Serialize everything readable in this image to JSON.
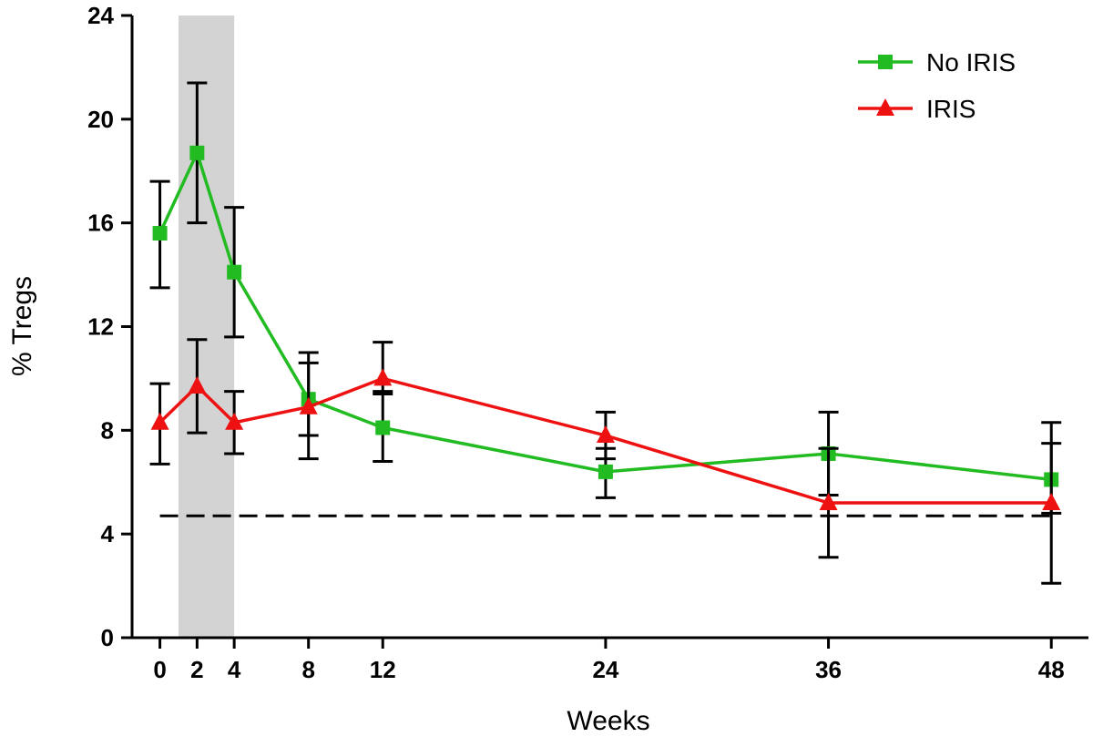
{
  "chart_data": {
    "type": "line",
    "title": "",
    "xlabel": "Weeks",
    "ylabel": "% Tregs",
    "xlim": [
      -1.5,
      50
    ],
    "ylim": [
      0,
      24
    ],
    "x_ticks": [
      0,
      2,
      4,
      8,
      12,
      24,
      36,
      48
    ],
    "y_ticks": [
      0,
      4,
      8,
      12,
      16,
      20,
      24
    ],
    "grid": false,
    "legend_position": "top-right",
    "shaded_region": {
      "x0": 1,
      "x1": 4,
      "color": "#d3d3d3"
    },
    "reference_line": {
      "y": 4.7,
      "style": "dashed",
      "color": "#000000"
    },
    "series": [
      {
        "name": "No IRIS",
        "color": "#22bb22",
        "marker": "square",
        "points": [
          {
            "x": 0,
            "y": 15.6,
            "err_low": 13.5,
            "err_high": 17.6
          },
          {
            "x": 2,
            "y": 18.7,
            "err_low": 16.0,
            "err_high": 21.4
          },
          {
            "x": 4,
            "y": 14.1,
            "err_low": 11.6,
            "err_high": 16.6
          },
          {
            "x": 8,
            "y": 9.2,
            "err_low": 7.8,
            "err_high": 10.6
          },
          {
            "x": 12,
            "y": 8.1,
            "err_low": 6.8,
            "err_high": 9.5
          },
          {
            "x": 24,
            "y": 6.4,
            "err_low": 5.4,
            "err_high": 7.3
          },
          {
            "x": 36,
            "y": 7.1,
            "err_low": 5.5,
            "err_high": 8.7
          },
          {
            "x": 48,
            "y": 6.1,
            "err_low": 4.8,
            "err_high": 7.5
          }
        ]
      },
      {
        "name": "IRIS",
        "color": "#ee1111",
        "marker": "triangle",
        "points": [
          {
            "x": 0,
            "y": 8.3,
            "err_low": 6.7,
            "err_high": 9.8
          },
          {
            "x": 2,
            "y": 9.7,
            "err_low": 7.9,
            "err_high": 11.5
          },
          {
            "x": 4,
            "y": 8.3,
            "err_low": 7.1,
            "err_high": 9.5
          },
          {
            "x": 8,
            "y": 8.9,
            "err_low": 6.9,
            "err_high": 11.0
          },
          {
            "x": 12,
            "y": 10.0,
            "err_low": 9.4,
            "err_high": 11.4
          },
          {
            "x": 24,
            "y": 7.8,
            "err_low": 6.9,
            "err_high": 8.7
          },
          {
            "x": 36,
            "y": 5.2,
            "err_low": 3.1,
            "err_high": 7.3
          },
          {
            "x": 48,
            "y": 5.2,
            "err_low": 2.1,
            "err_high": 8.3
          }
        ]
      }
    ]
  }
}
